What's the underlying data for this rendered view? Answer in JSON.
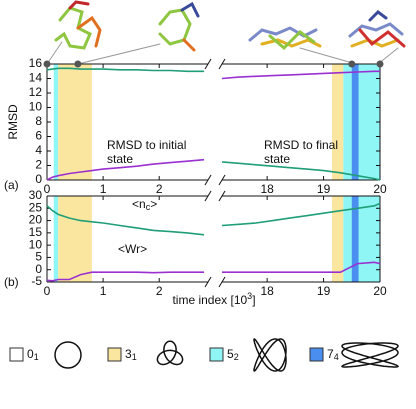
{
  "chart_data": {
    "type": "line",
    "xlabel": "time index [10",
    "xlabel_sup": "3",
    "xlabel_end": "]",
    "x_segments": [
      {
        "xlim": [
          0,
          2.87
        ],
        "xticks": [
          0,
          1,
          2
        ]
      },
      {
        "xlim": [
          17.2,
          20
        ],
        "xticks": [
          18,
          19,
          20
        ]
      }
    ],
    "regions": [
      {
        "start": 0.12,
        "end": 0.2,
        "color": "#8ff5f5"
      },
      {
        "start": 0.2,
        "end": 0.8,
        "color": "#fbe6a0"
      },
      {
        "start": 19.15,
        "end": 19.35,
        "color": "#fbe6a0"
      },
      {
        "start": 19.35,
        "end": 20,
        "color": "#8ff5f5"
      },
      {
        "start": 19.5,
        "end": 19.62,
        "color": "#4a8ef0"
      }
    ],
    "snapshots_x": [
      0,
      0.55,
      19.5,
      20
    ],
    "legend": [
      {
        "label": "0",
        "sub": "1",
        "color": "#ffffff"
      },
      {
        "label": "3",
        "sub": "1",
        "color": "#fbe6a0"
      },
      {
        "label": "5",
        "sub": "2",
        "color": "#8ff5f5"
      },
      {
        "label": "7",
        "sub": "4",
        "color": "#4a8ef0"
      }
    ],
    "panels": [
      {
        "label": "(a)",
        "ylabel": "RMSD",
        "ylim": [
          0,
          16
        ],
        "yticks": [
          0,
          2,
          4,
          6,
          8,
          10,
          12,
          14,
          16
        ],
        "series": [
          {
            "name": "RMSD to initial state",
            "color": "#9b30d0",
            "x": [
              0,
              0.1,
              0.2,
              0.4,
              0.6,
              0.8,
              1.0,
              1.3,
              1.6,
              1.9,
              2.2,
              2.5,
              2.8,
              null,
              17.2,
              17.5,
              17.8,
              18.1,
              18.4,
              18.7,
              19.0,
              19.3,
              19.6,
              19.9,
              20
            ],
            "values": [
              0,
              0.4,
              0.6,
              0.9,
              1.1,
              1.3,
              1.5,
              1.7,
              1.9,
              2.2,
              2.4,
              2.6,
              2.8,
              null,
              14.0,
              14.2,
              14.3,
              14.4,
              14.5,
              14.6,
              14.7,
              14.8,
              14.9,
              15.0,
              15.0
            ]
          },
          {
            "name": "RMSD to final state",
            "color": "#1f9e78",
            "x": [
              0,
              0.1,
              0.2,
              0.4,
              0.6,
              0.8,
              1.0,
              1.3,
              1.6,
              1.9,
              2.2,
              2.5,
              2.8,
              null,
              17.2,
              17.5,
              17.8,
              18.1,
              18.4,
              18.7,
              19.0,
              19.3,
              19.6,
              19.9,
              20
            ],
            "values": [
              15.2,
              15.3,
              15.4,
              15.4,
              15.3,
              15.3,
              15.3,
              15.2,
              15.2,
              15.1,
              15.1,
              15.0,
              15.0,
              null,
              2.5,
              2.3,
              2.1,
              1.9,
              1.7,
              1.5,
              1.3,
              1.0,
              0.6,
              0.2,
              0
            ]
          }
        ]
      },
      {
        "label": "(b)",
        "ylim": [
          -5,
          30
        ],
        "yticks": [
          -5,
          0,
          5,
          10,
          15,
          20,
          25,
          30
        ],
        "series": [
          {
            "name": "<n",
            "name_sub": "c",
            "name_end": ">",
            "color": "#1f9e78",
            "x": [
              0,
              0.1,
              0.2,
              0.4,
              0.6,
              0.8,
              1.0,
              1.3,
              1.6,
              1.9,
              2.2,
              2.5,
              2.8,
              null,
              17.2,
              17.5,
              17.8,
              18.1,
              18.4,
              18.7,
              19.0,
              19.3,
              19.6,
              19.9,
              20
            ],
            "values": [
              26,
              24,
              22.5,
              21,
              20,
              19.5,
              19,
              18,
              17,
              16,
              15.5,
              15,
              14.2,
              null,
              18,
              18.5,
              19,
              20,
              21,
              22,
              23,
              24,
              25,
              26,
              27
            ]
          },
          {
            "name": "<Wr>",
            "color": "#9b30d0",
            "x": [
              0,
              0.1,
              0.2,
              0.4,
              0.6,
              0.8,
              1.0,
              1.3,
              1.6,
              1.9,
              2.2,
              2.5,
              2.8,
              null,
              17.2,
              17.5,
              17.8,
              18.1,
              18.4,
              18.7,
              19.0,
              19.3,
              19.6,
              19.9,
              20
            ],
            "values": [
              -4.3,
              -4.5,
              -4,
              -4,
              -2,
              -1,
              -1,
              -1,
              -1,
              -1.2,
              -1,
              -1,
              -1,
              null,
              -1,
              -1,
              -1,
              -1,
              -1,
              -1,
              -1,
              -1,
              2.5,
              3,
              2.5
            ]
          }
        ]
      }
    ]
  }
}
